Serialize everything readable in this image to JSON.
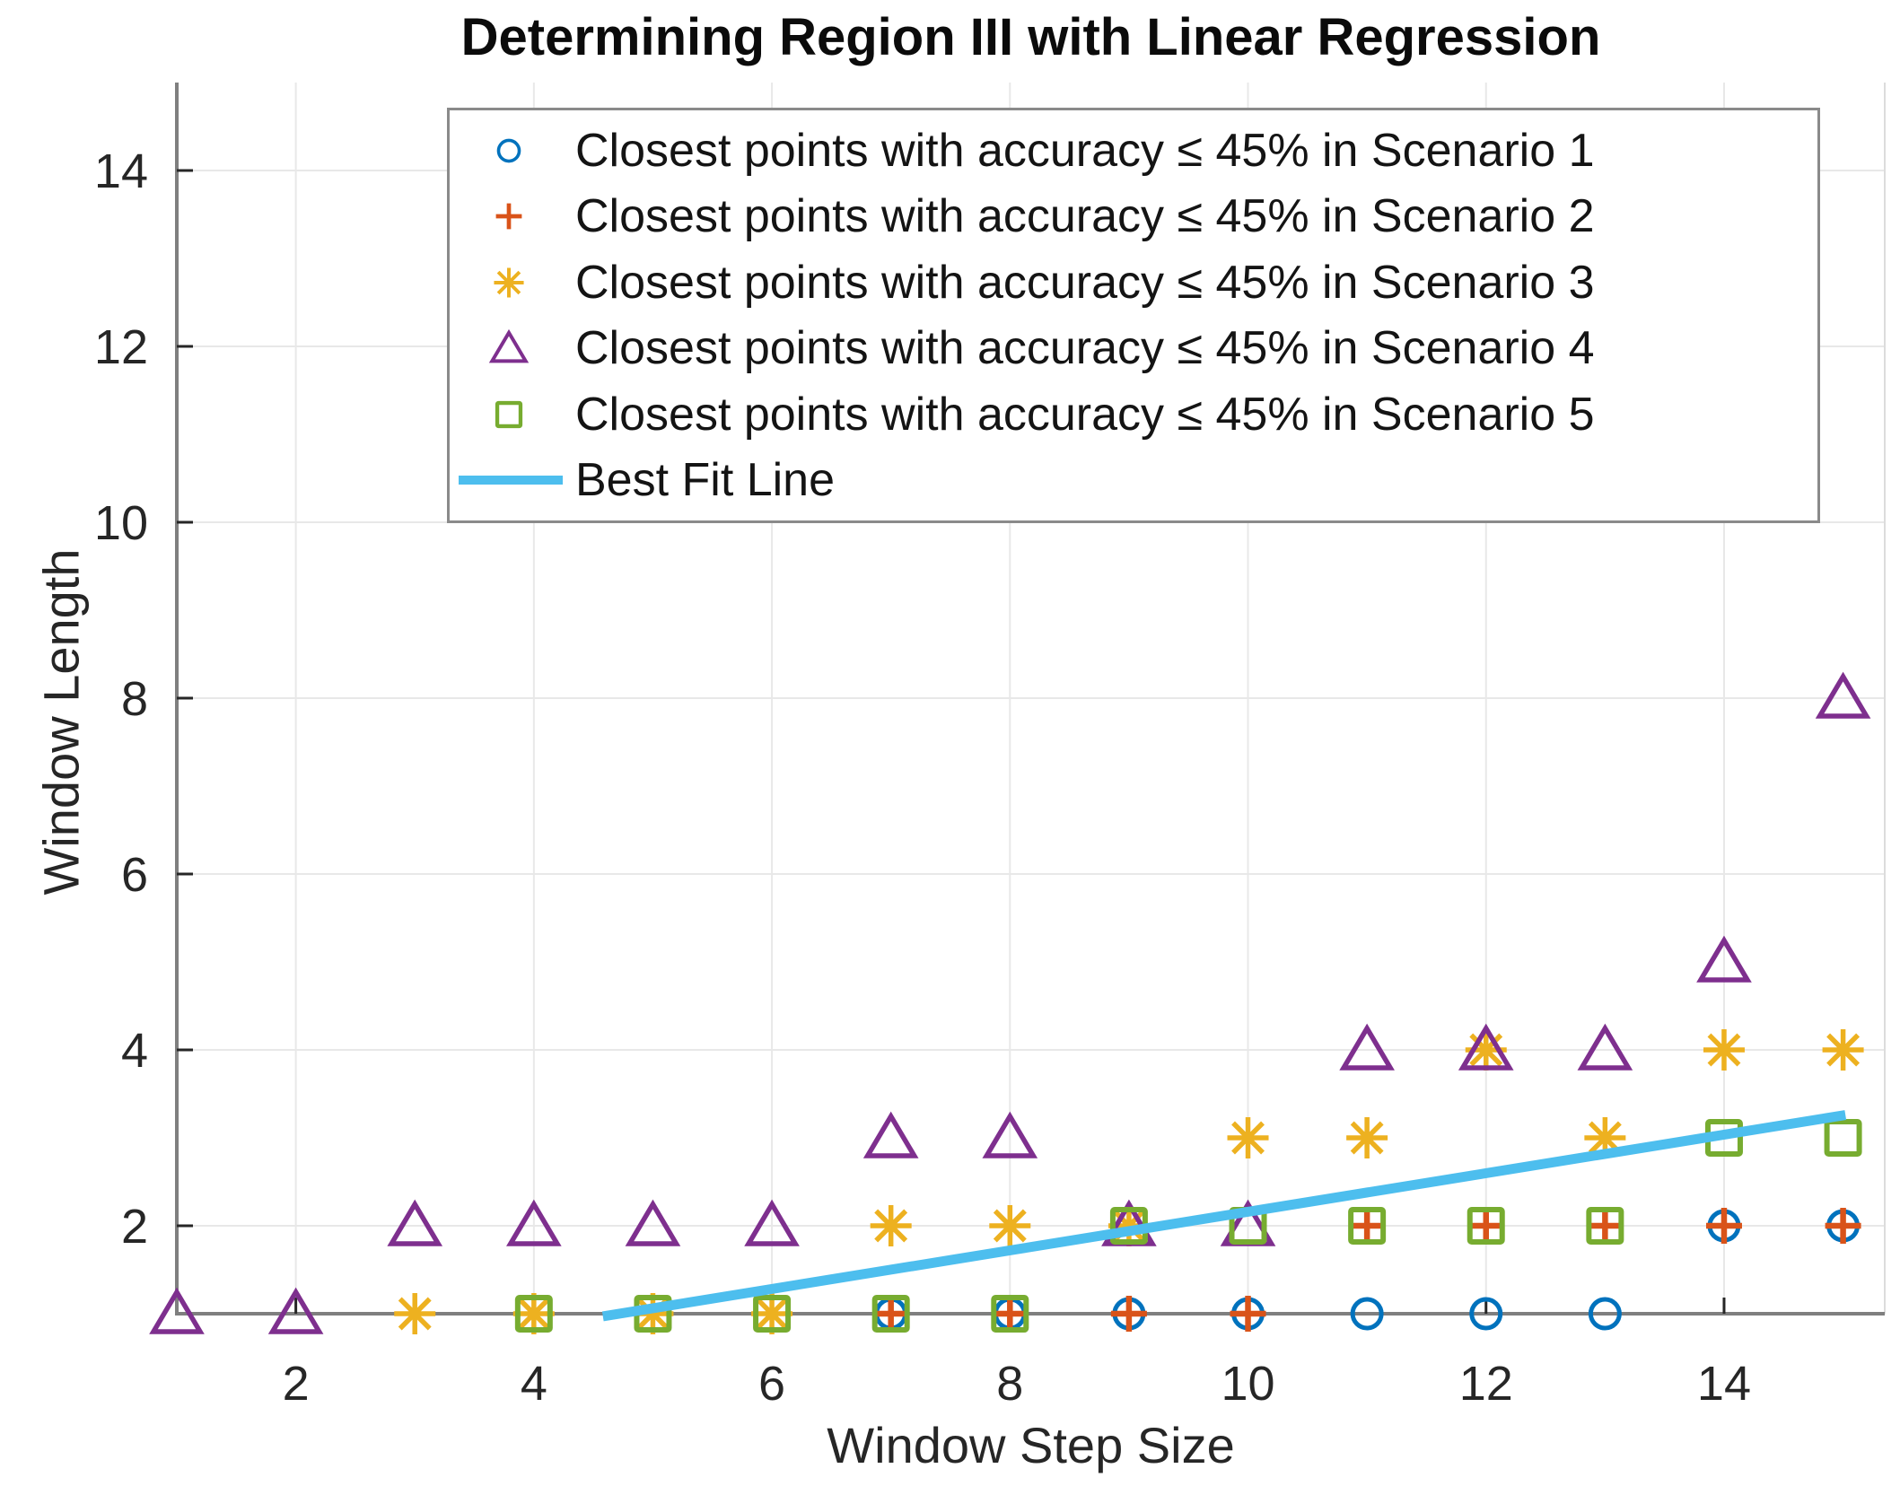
{
  "chart_data": {
    "type": "scatter",
    "title": "Determining Region III with Linear Regression",
    "xlabel": "Window Step Size",
    "ylabel": "Window Length",
    "xlim": [
      1,
      15.35
    ],
    "ylim": [
      1,
      15
    ],
    "xticks": [
      2,
      4,
      6,
      8,
      10,
      12,
      14
    ],
    "yticks": [
      2,
      4,
      6,
      8,
      10,
      12,
      14
    ],
    "grid": true,
    "legend_position": "upper-center-inside",
    "colors": {
      "grid": "#e8e8e8",
      "axis": "#7f7f7f",
      "box_faint": "#dcdcdc",
      "tick_text": "#262626"
    },
    "series": [
      {
        "name": "Closest points with accuracy ≤ 45% in Scenario 1",
        "marker": "circle",
        "color": "#0072BD",
        "points": [
          [
            7,
            1
          ],
          [
            8,
            1
          ],
          [
            9,
            1
          ],
          [
            10,
            1
          ],
          [
            11,
            1
          ],
          [
            12,
            1
          ],
          [
            13,
            1
          ],
          [
            14,
            2
          ],
          [
            15,
            2
          ]
        ]
      },
      {
        "name": "Closest points with accuracy ≤ 45% in Scenario 2",
        "marker": "plus",
        "color": "#D95319",
        "points": [
          [
            7,
            1
          ],
          [
            8,
            1
          ],
          [
            9,
            1
          ],
          [
            10,
            1
          ],
          [
            11,
            2
          ],
          [
            12,
            2
          ],
          [
            13,
            2
          ],
          [
            14,
            2
          ],
          [
            15,
            2
          ]
        ]
      },
      {
        "name": "Closest points with accuracy ≤ 45% in Scenario 3",
        "marker": "asterisk",
        "color": "#EDB120",
        "points": [
          [
            3,
            1
          ],
          [
            4,
            1
          ],
          [
            5,
            1
          ],
          [
            6,
            1
          ],
          [
            7,
            2
          ],
          [
            8,
            2
          ],
          [
            9,
            2
          ],
          [
            10,
            3
          ],
          [
            11,
            3
          ],
          [
            12,
            4
          ],
          [
            13,
            3
          ],
          [
            14,
            4
          ],
          [
            15,
            4
          ]
        ]
      },
      {
        "name": "Closest points with accuracy ≤ 45% in Scenario 4",
        "marker": "triangle",
        "color": "#7E2F8E",
        "points": [
          [
            1,
            1
          ],
          [
            2,
            1
          ],
          [
            3,
            2
          ],
          [
            4,
            2
          ],
          [
            5,
            2
          ],
          [
            6,
            2
          ],
          [
            7,
            3
          ],
          [
            8,
            3
          ],
          [
            9,
            2
          ],
          [
            10,
            2
          ],
          [
            11,
            4
          ],
          [
            12,
            4
          ],
          [
            13,
            4
          ],
          [
            14,
            5
          ],
          [
            15,
            8
          ]
        ]
      },
      {
        "name": "Closest points with accuracy ≤ 45% in Scenario 5",
        "marker": "square",
        "color": "#77AC30",
        "points": [
          [
            4,
            1
          ],
          [
            5,
            1
          ],
          [
            6,
            1
          ],
          [
            7,
            1
          ],
          [
            8,
            1
          ],
          [
            9,
            2
          ],
          [
            10,
            2
          ],
          [
            11,
            2
          ],
          [
            12,
            2
          ],
          [
            13,
            2
          ],
          [
            14,
            3
          ],
          [
            15,
            3
          ]
        ]
      }
    ],
    "best_fit_line": {
      "label": "Best Fit Line",
      "color": "#4DBEEE",
      "from": [
        4.58,
        0.97
      ],
      "to": [
        15.02,
        3.26
      ]
    }
  }
}
